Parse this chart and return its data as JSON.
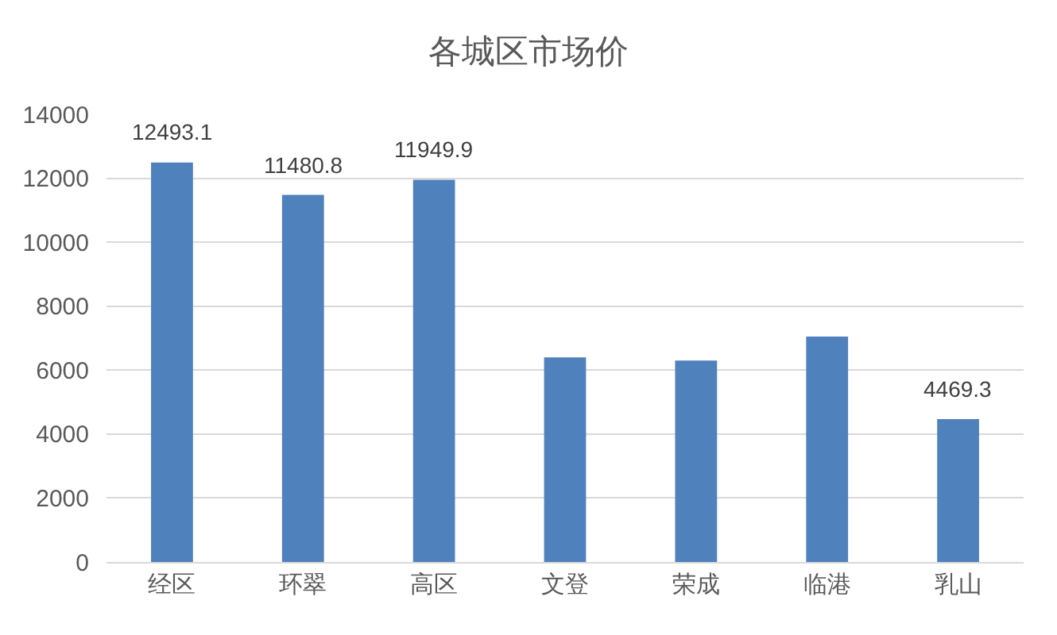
{
  "chart_data": {
    "type": "bar",
    "title": "各城区市场价",
    "categories": [
      "经区",
      "环翠",
      "高区",
      "文登",
      "荣成",
      "临港",
      "乳山"
    ],
    "values": [
      12493.1,
      11480.8,
      11949.9,
      6400,
      6300,
      7050,
      4469.3
    ],
    "value_labels": [
      "12493.1",
      "11480.8",
      "11949.9",
      null,
      null,
      null,
      "4469.3"
    ],
    "color": "#4f81bd",
    "ylim": [
      0,
      14000
    ],
    "yticks": [
      0,
      2000,
      4000,
      6000,
      8000,
      10000,
      12000,
      14000
    ],
    "grid": "y"
  }
}
